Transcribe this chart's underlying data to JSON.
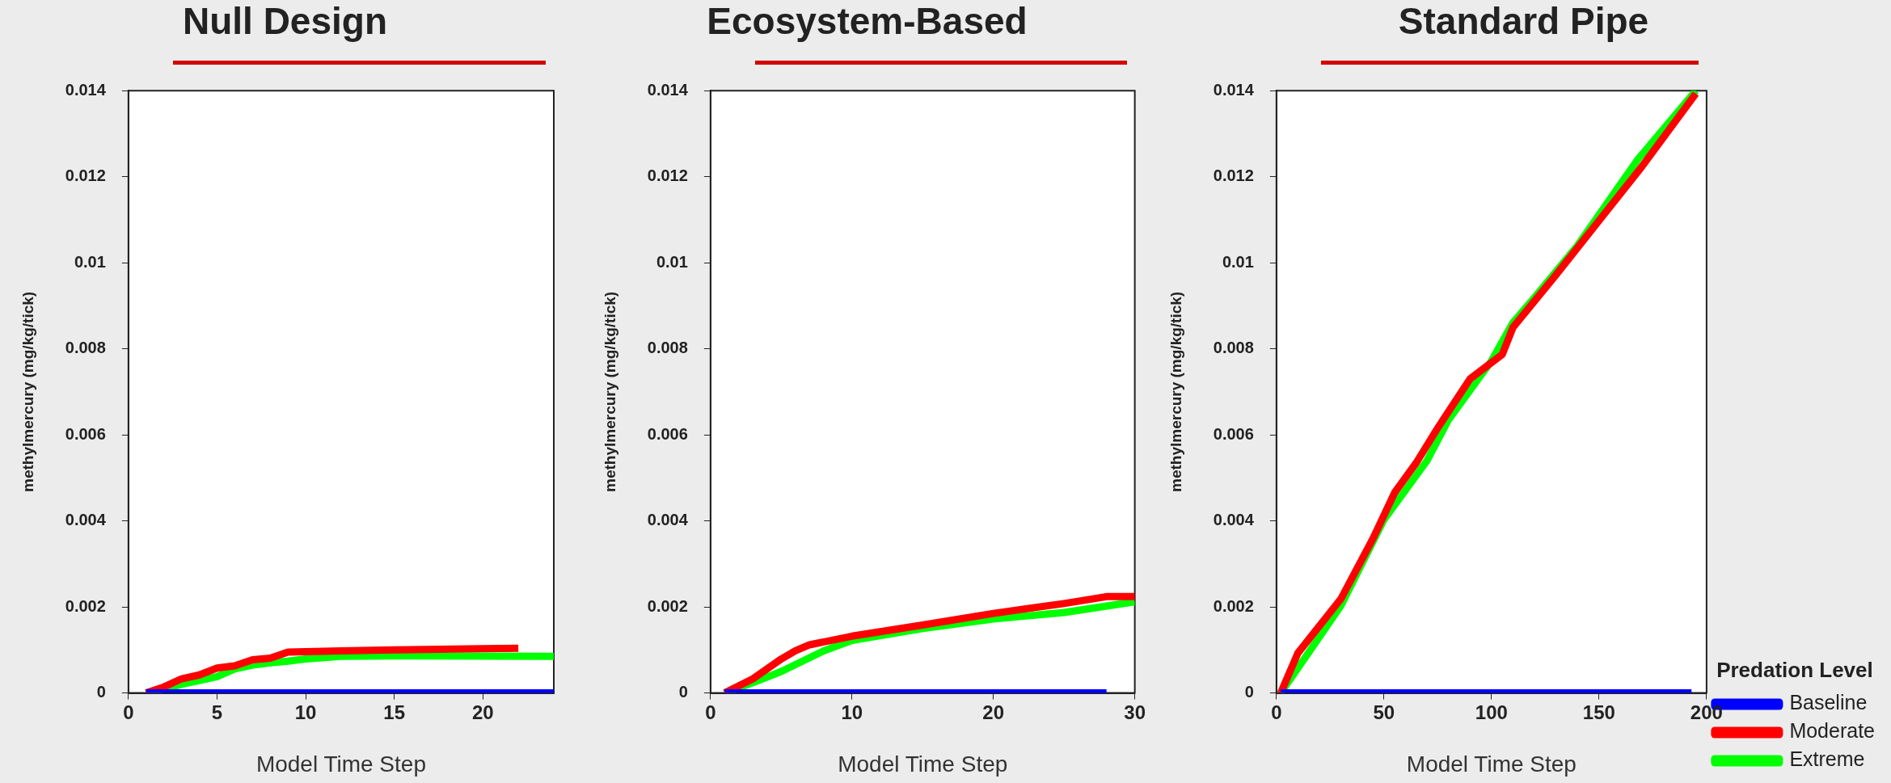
{
  "chart_data": [
    {
      "type": "line",
      "title": "Null Design",
      "xlabel": "Model Time Step",
      "ylabel": "methylmercury (mg/kg/tick)",
      "xlim": [
        0,
        24
      ],
      "xticks": [
        0,
        5,
        10,
        15,
        20
      ],
      "ylim": [
        0,
        0.014
      ],
      "yticks": [
        0,
        0.002,
        0.004,
        0.006,
        0.008,
        0.01,
        0.012,
        0.014
      ],
      "grid": false,
      "legend": false,
      "marker": "none",
      "line_style": "solid",
      "series": [
        {
          "color": "#0000ff",
          "x": [
            1,
            24
          ],
          "values": [
            0,
            0
          ]
        },
        {
          "color": "#ff0000",
          "x": [
            1,
            2,
            3,
            4,
            5,
            6,
            7,
            8,
            9,
            10,
            12,
            15,
            20,
            22
          ],
          "values": [
            0,
            0.00014,
            0.00033,
            0.00042,
            0.00058,
            0.00063,
            0.00077,
            0.00081,
            0.00095,
            0.00096,
            0.00098,
            0.001,
            0.00103,
            0.00104
          ]
        },
        {
          "color": "#00ff00",
          "x": [
            1,
            3,
            5,
            6,
            7,
            8,
            9,
            10,
            12,
            15,
            24
          ],
          "values": [
            0,
            0.0002,
            0.00038,
            0.00056,
            0.00065,
            0.0007,
            0.00074,
            0.00079,
            0.00085,
            0.00086,
            0.00085
          ]
        }
      ]
    },
    {
      "type": "line",
      "title": "Ecosystem-Based",
      "xlabel": "Model Time Step",
      "ylabel": "methylmercury (mg/kg/tick)",
      "xlim": [
        0,
        30
      ],
      "xticks": [
        0,
        10,
        20,
        30
      ],
      "ylim": [
        0,
        0.014
      ],
      "yticks": [
        0,
        0.002,
        0.004,
        0.006,
        0.008,
        0.01,
        0.012,
        0.014
      ],
      "grid": false,
      "legend": false,
      "marker": "none",
      "line_style": "solid",
      "series": [
        {
          "color": "#0000ff",
          "x": [
            1,
            28
          ],
          "values": [
            0,
            0
          ]
        },
        {
          "color": "#ff0000",
          "x": [
            1,
            3,
            5,
            6,
            7,
            10,
            15,
            20,
            25,
            28,
            30
          ],
          "values": [
            0,
            0.00033,
            0.00079,
            0.00098,
            0.00112,
            0.00132,
            0.00158,
            0.00185,
            0.00208,
            0.00224,
            0.00224
          ]
        },
        {
          "color": "#00ff00",
          "x": [
            1,
            3,
            5,
            7,
            8,
            10,
            15,
            20,
            25,
            30
          ],
          "values": [
            0,
            0.00024,
            0.0005,
            0.00082,
            0.00098,
            0.00122,
            0.0015,
            0.00172,
            0.00187,
            0.00212
          ]
        }
      ]
    },
    {
      "type": "line",
      "title": "Standard Pipe",
      "xlabel": "Model Time Step",
      "ylabel": "methylmercury (mg/kg/tick)",
      "legend_title": "Predation Level",
      "xlim": [
        0,
        200
      ],
      "xticks": [
        0,
        50,
        100,
        150,
        200
      ],
      "ylim": [
        0,
        0.014
      ],
      "yticks": [
        0,
        0.002,
        0.004,
        0.006,
        0.008,
        0.01,
        0.012,
        0.014
      ],
      "grid": false,
      "legend": "bottom right",
      "marker": "none",
      "line_style": "solid",
      "series": [
        {
          "name": "Baseline",
          "color": "#0000ff",
          "x": [
            2,
            193
          ],
          "values": [
            0,
            0
          ]
        },
        {
          "name": "Moderate",
          "color": "#ff0000",
          "x": [
            2,
            10,
            30,
            45,
            55,
            65,
            75,
            90,
            105,
            110,
            130,
            150,
            170,
            195
          ],
          "values": [
            0,
            0.00093,
            0.00219,
            0.0036,
            0.00466,
            0.00535,
            0.00616,
            0.0073,
            0.00787,
            0.0085,
            0.00972,
            0.01098,
            0.01224,
            0.01393
          ]
        },
        {
          "name": "Extreme",
          "color": "#00ff00",
          "x": [
            2,
            30,
            50,
            70,
            80,
            100,
            110,
            120,
            140,
            168,
            195
          ],
          "values": [
            0,
            0.00203,
            0.00403,
            0.0054,
            0.00635,
            0.00772,
            0.00861,
            0.00919,
            0.0104,
            0.0124,
            0.014
          ]
        }
      ]
    }
  ]
}
